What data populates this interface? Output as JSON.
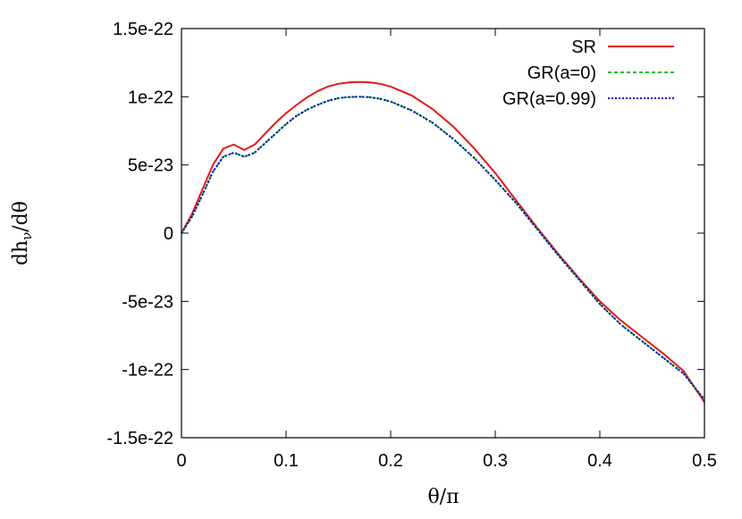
{
  "chart_data": {
    "type": "line",
    "title": "",
    "xlabel": "θ/π",
    "ylabel_main": "dh",
    "ylabel_sub": "ν",
    "ylabel_tail": "/dθ",
    "xlim": [
      0,
      0.5
    ],
    "ylim": [
      -1.5e-22,
      1.5e-22
    ],
    "x_ticks": [
      0,
      0.1,
      0.2,
      0.3,
      0.4,
      0.5
    ],
    "x_tick_labels": [
      "0",
      "0.1",
      "0.2",
      "0.3",
      "0.4",
      "0.5"
    ],
    "y_ticks": [
      -1.5e-22,
      -1e-22,
      -5e-23,
      0,
      5e-23,
      1e-22,
      1.5e-22
    ],
    "y_tick_labels": [
      "-1.5e-22",
      "-1e-22",
      "-5e-23",
      "0",
      "5e-23",
      "1e-22",
      "1.5e-22"
    ],
    "grid": false,
    "legend_position": "top-right",
    "series": [
      {
        "name": "SR",
        "color": "#e41a1c",
        "dash": "solid",
        "x": [
          0,
          0.01,
          0.02,
          0.03,
          0.04,
          0.05,
          0.06,
          0.07,
          0.08,
          0.09,
          0.1,
          0.11,
          0.12,
          0.13,
          0.14,
          0.15,
          0.16,
          0.17,
          0.18,
          0.19,
          0.2,
          0.22,
          0.24,
          0.26,
          0.28,
          0.3,
          0.32,
          0.34,
          0.36,
          0.38,
          0.4,
          0.42,
          0.44,
          0.46,
          0.48,
          0.5
        ],
        "y": [
          0,
          1.4e-23,
          3.2e-23,
          5e-23,
          6.2e-23,
          6.5e-23,
          6.1e-23,
          6.5e-23,
          7.3e-23,
          8.1e-23,
          8.8e-23,
          9.4e-23,
          9.95e-23,
          1.04e-22,
          1.075e-22,
          1.095e-22,
          1.105e-22,
          1.108e-22,
          1.106e-22,
          1.095e-22,
          1.075e-22,
          1.01e-22,
          9.1e-23,
          7.8e-23,
          6.2e-23,
          4.4e-23,
          2.4e-23,
          4e-24,
          -1.5e-23,
          -3.3e-23,
          -5e-23,
          -6.4e-23,
          -7.6e-23,
          -8.8e-23,
          -1.01e-22,
          -1.24e-22
        ]
      },
      {
        "name": "GR(a=0)",
        "color": "#00c000",
        "dash": "dashed",
        "x": [
          0,
          0.01,
          0.02,
          0.03,
          0.04,
          0.05,
          0.06,
          0.07,
          0.08,
          0.09,
          0.1,
          0.11,
          0.12,
          0.13,
          0.14,
          0.15,
          0.16,
          0.17,
          0.18,
          0.19,
          0.2,
          0.22,
          0.24,
          0.26,
          0.28,
          0.3,
          0.32,
          0.34,
          0.36,
          0.38,
          0.4,
          0.42,
          0.44,
          0.46,
          0.48,
          0.5
        ],
        "y": [
          0,
          1.2e-23,
          2.8e-23,
          4.5e-23,
          5.6e-23,
          5.9e-23,
          5.6e-23,
          5.9e-23,
          6.6e-23,
          7.3e-23,
          8e-23,
          8.6e-23,
          9.05e-23,
          9.4e-23,
          9.7e-23,
          9.9e-23,
          9.98e-23,
          1e-22,
          9.97e-23,
          9.85e-23,
          9.65e-23,
          9e-23,
          8.1e-23,
          6.9e-23,
          5.5e-23,
          3.9e-23,
          2.2e-23,
          3e-24,
          -1.6e-23,
          -3.4e-23,
          -5.2e-23,
          -6.7e-23,
          -7.9e-23,
          -9.1e-23,
          -1.03e-22,
          -1.22e-22
        ]
      },
      {
        "name": "GR(a=0.99)",
        "color": "#0000cc",
        "dash": "dotted",
        "x": [
          0,
          0.01,
          0.02,
          0.03,
          0.04,
          0.05,
          0.06,
          0.07,
          0.08,
          0.09,
          0.1,
          0.11,
          0.12,
          0.13,
          0.14,
          0.15,
          0.16,
          0.17,
          0.18,
          0.19,
          0.2,
          0.22,
          0.24,
          0.26,
          0.28,
          0.3,
          0.32,
          0.34,
          0.36,
          0.38,
          0.4,
          0.42,
          0.44,
          0.46,
          0.48,
          0.5
        ],
        "y": [
          0,
          1.2e-23,
          2.8e-23,
          4.5e-23,
          5.6e-23,
          5.9e-23,
          5.6e-23,
          5.9e-23,
          6.6e-23,
          7.3e-23,
          8e-23,
          8.6e-23,
          9.05e-23,
          9.4e-23,
          9.7e-23,
          9.9e-23,
          9.98e-23,
          1e-22,
          9.97e-23,
          9.85e-23,
          9.65e-23,
          9e-23,
          8.1e-23,
          6.9e-23,
          5.5e-23,
          3.9e-23,
          2.2e-23,
          3e-24,
          -1.6e-23,
          -3.4e-23,
          -5.2e-23,
          -6.7e-23,
          -7.9e-23,
          -9.1e-23,
          -1.03e-22,
          -1.22e-22
        ]
      }
    ]
  }
}
